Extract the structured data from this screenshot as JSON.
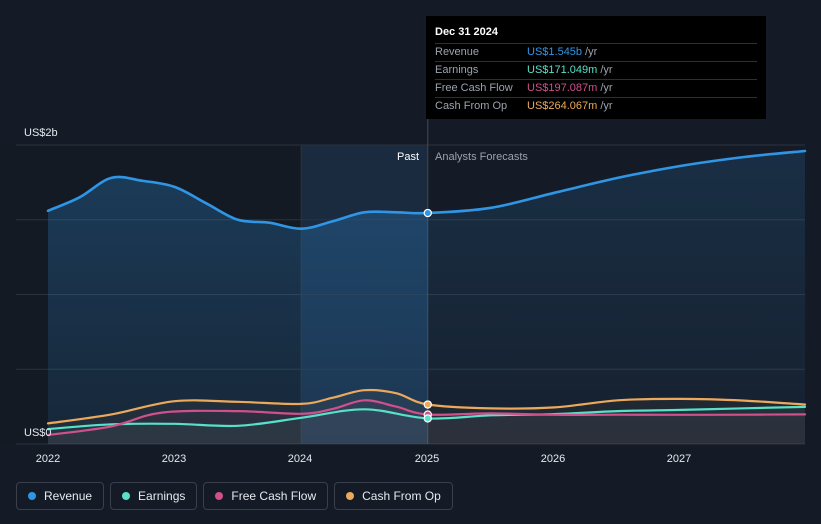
{
  "chart_data": {
    "type": "line",
    "x_ticks": [
      "2022",
      "2023",
      "2024",
      "2025",
      "2026",
      "2027"
    ],
    "y_ticks": [
      "US$0",
      "US$2b"
    ],
    "ylim": [
      0,
      2000000000
    ],
    "xlim": [
      2022.0,
      2027.98
    ],
    "past_label": "Past",
    "forecast_label": "Analysts Forecasts",
    "divider_x": 2025.0,
    "highlight_start_x": 2024.0,
    "series": [
      {
        "name": "Revenue",
        "color": "#2f96e6",
        "area": true,
        "points": [
          [
            2022.0,
            1560000000.0
          ],
          [
            2022.25,
            1650000000.0
          ],
          [
            2022.5,
            1780000000.0
          ],
          [
            2022.75,
            1760000000.0
          ],
          [
            2023.0,
            1720000000.0
          ],
          [
            2023.25,
            1610000000.0
          ],
          [
            2023.5,
            1500000000.0
          ],
          [
            2023.75,
            1480000000.0
          ],
          [
            2024.0,
            1440000000.0
          ],
          [
            2024.25,
            1490000000.0
          ],
          [
            2024.5,
            1550000000.0
          ],
          [
            2024.75,
            1550000000.0
          ],
          [
            2025.0,
            1545000000.0
          ],
          [
            2025.5,
            1580000000.0
          ],
          [
            2026.0,
            1680000000.0
          ],
          [
            2026.5,
            1780000000.0
          ],
          [
            2027.0,
            1860000000.0
          ],
          [
            2027.5,
            1920000000.0
          ],
          [
            2027.98,
            1960000000.0
          ]
        ]
      },
      {
        "name": "Earnings",
        "color": "#58e0c8",
        "area": false,
        "points": [
          [
            2022.0,
            100000000.0
          ],
          [
            2022.5,
            132000000.0
          ],
          [
            2023.0,
            135000000.0
          ],
          [
            2023.5,
            122000000.0
          ],
          [
            2024.0,
            175000000.0
          ],
          [
            2024.5,
            232000000.0
          ],
          [
            2025.0,
            171000000.0
          ],
          [
            2025.5,
            192000000.0
          ],
          [
            2026.0,
            200000000.0
          ],
          [
            2026.5,
            220000000.0
          ],
          [
            2027.0,
            228000000.0
          ],
          [
            2027.5,
            239000000.0
          ],
          [
            2027.98,
            248000000.0
          ]
        ]
      },
      {
        "name": "Free Cash Flow",
        "color": "#d0508c",
        "area": false,
        "points": [
          [
            2022.0,
            60000000.0
          ],
          [
            2022.5,
            118000000.0
          ],
          [
            2022.9,
            210000000.0
          ],
          [
            2023.5,
            220000000.0
          ],
          [
            2024.0,
            202000000.0
          ],
          [
            2024.25,
            235000000.0
          ],
          [
            2024.5,
            292000000.0
          ],
          [
            2024.75,
            250000000.0
          ],
          [
            2025.0,
            197000000.0
          ],
          [
            2025.5,
            205000000.0
          ],
          [
            2026.0,
            195000000.0
          ],
          [
            2026.5,
            196000000.0
          ],
          [
            2027.0,
            195000000.0
          ],
          [
            2027.5,
            196000000.0
          ],
          [
            2027.98,
            198000000.0
          ]
        ]
      },
      {
        "name": "Cash From Op",
        "color": "#eca95c",
        "area": false,
        "points": [
          [
            2022.0,
            138000000.0
          ],
          [
            2022.5,
            198000000.0
          ],
          [
            2023.0,
            286000000.0
          ],
          [
            2023.5,
            282000000.0
          ],
          [
            2024.0,
            268000000.0
          ],
          [
            2024.25,
            310000000.0
          ],
          [
            2024.5,
            360000000.0
          ],
          [
            2024.75,
            340000000.0
          ],
          [
            2025.0,
            264000000.0
          ],
          [
            2025.5,
            238000000.0
          ],
          [
            2026.0,
            245000000.0
          ],
          [
            2026.5,
            292000000.0
          ],
          [
            2027.0,
            302000000.0
          ],
          [
            2027.5,
            290000000.0
          ],
          [
            2027.98,
            264000000.0
          ]
        ]
      }
    ],
    "highlight_points": [
      {
        "series": "Revenue",
        "x": 2025.0,
        "y": 1545000000.0
      },
      {
        "series": "Cash From Op",
        "x": 2025.0,
        "y": 264000000.0
      },
      {
        "series": "Free Cash Flow",
        "x": 2025.0,
        "y": 197000000.0
      },
      {
        "series": "Earnings",
        "x": 2025.0,
        "y": 171000000.0
      }
    ]
  },
  "tooltip": {
    "date": "Dec 31 2024",
    "rows": [
      {
        "label": "Revenue",
        "value": "US$1.545b",
        "unit": "/yr",
        "color": "#2f96e6"
      },
      {
        "label": "Earnings",
        "value": "US$171.049m",
        "unit": "/yr",
        "color": "#58e0c8"
      },
      {
        "label": "Free Cash Flow",
        "value": "US$197.087m",
        "unit": "/yr",
        "color": "#d0508c"
      },
      {
        "label": "Cash From Op",
        "value": "US$264.067m",
        "unit": "/yr",
        "color": "#eca95c"
      }
    ]
  },
  "legend": [
    {
      "label": "Revenue",
      "color": "#2f96e6"
    },
    {
      "label": "Earnings",
      "color": "#58e0c8"
    },
    {
      "label": "Free Cash Flow",
      "color": "#d0508c"
    },
    {
      "label": "Cash From Op",
      "color": "#eca95c"
    }
  ]
}
